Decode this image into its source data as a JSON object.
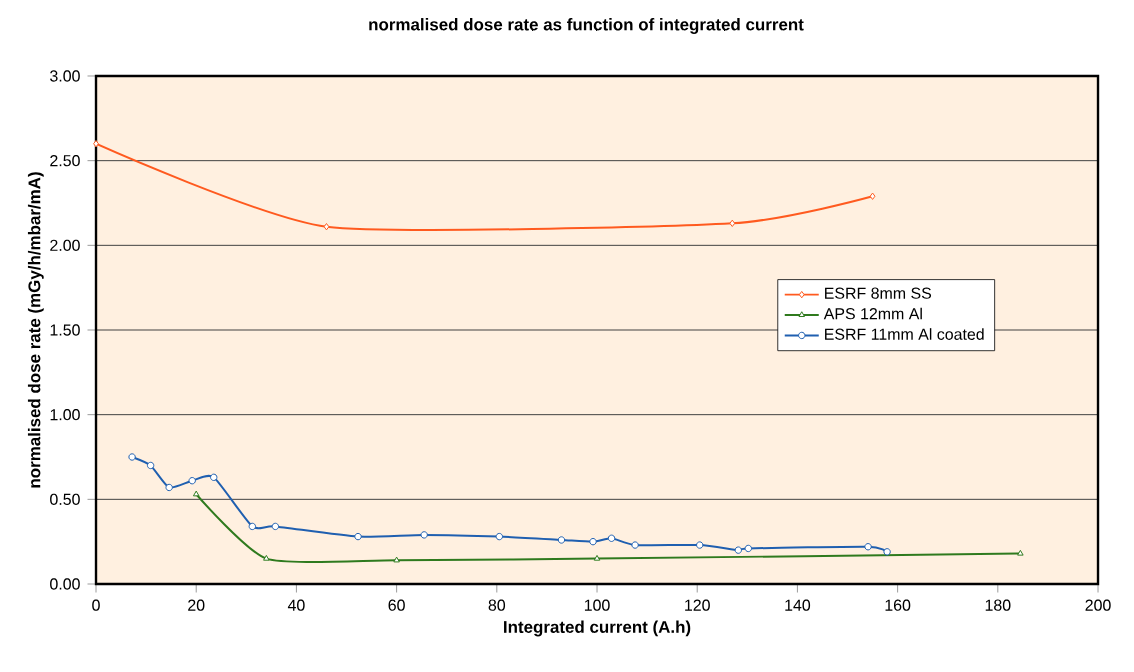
{
  "chart_data": {
    "type": "line",
    "title": "normalised dose rate as function of integrated current",
    "xlabel": "Integrated current (A.h)",
    "ylabel": "normalised dose rate (mGy/h/mbar/mA)",
    "xlim": [
      0,
      200
    ],
    "xticks": [
      0,
      20,
      40,
      60,
      80,
      100,
      120,
      140,
      160,
      180,
      200
    ],
    "ylim": [
      0,
      3
    ],
    "yticks": [
      {
        "value": 0,
        "label": "0.00"
      },
      {
        "value": 0.5,
        "label": "0.50"
      },
      {
        "value": 1,
        "label": "1.00"
      },
      {
        "value": 1.5,
        "label": "1.50"
      },
      {
        "value": 2,
        "label": "2.00"
      },
      {
        "value": 2.5,
        "label": "2.50"
      },
      {
        "value": 3,
        "label": "3.00"
      }
    ],
    "grid": "y",
    "legend": "right",
    "line_style": "solid",
    "series": [
      {
        "name": "ESRF 8mm SS",
        "color": "#ff5a1f",
        "marker": "diamond",
        "x": [
          0,
          46,
          127,
          155
        ],
        "values": [
          2.6,
          2.11,
          2.13,
          2.29
        ]
      },
      {
        "name": "APS 12mm Al",
        "color": "#2f7a1e",
        "marker": "triangle",
        "x": [
          20,
          34,
          60,
          100,
          184.5
        ],
        "values": [
          0.53,
          0.15,
          0.14,
          0.15,
          0.18
        ]
      },
      {
        "name": "ESRF 11mm Al coated",
        "color": "#1f5fb0",
        "marker": "circle",
        "x": [
          7.2,
          10.9,
          14.6,
          19.2,
          23.5,
          31.2,
          35.8,
          52.3,
          65.5,
          80.5,
          92.9,
          99.2,
          102.9,
          107.6,
          120.5,
          128.2,
          130.2,
          154.1,
          157.9
        ],
        "values": [
          0.75,
          0.7,
          0.57,
          0.61,
          0.63,
          0.34,
          0.34,
          0.28,
          0.29,
          0.28,
          0.26,
          0.25,
          0.27,
          0.23,
          0.23,
          0.2,
          0.21,
          0.22,
          0.19
        ]
      }
    ]
  }
}
